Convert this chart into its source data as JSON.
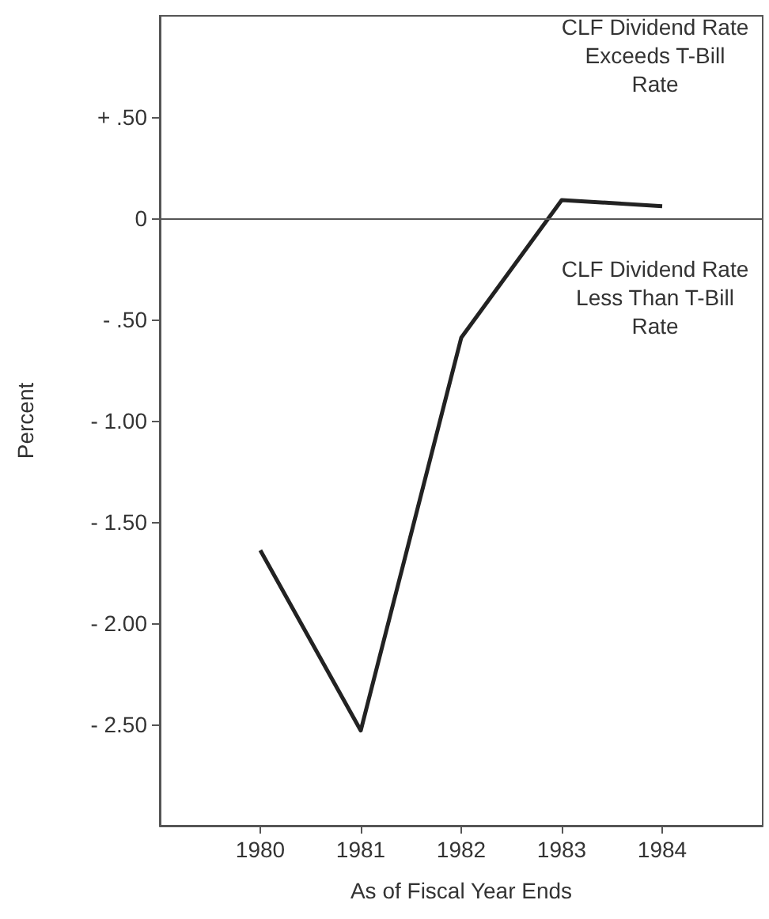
{
  "chart_data": {
    "type": "line",
    "xlabel": "As of Fiscal Year Ends",
    "ylabel": "Percent",
    "x": [
      1980,
      1981,
      1982,
      1983,
      1984
    ],
    "series": [
      {
        "color": "#222222",
        "values": [
          -1.64,
          -2.53,
          -0.59,
          0.09,
          0.06
        ]
      }
    ],
    "xlim": [
      1979,
      1985
    ],
    "xticks": [
      1980,
      1981,
      1982,
      1983,
      1984
    ],
    "ylim": [
      -3,
      1
    ],
    "yticks": [
      {
        "value": 0.5,
        "label": "+ .50"
      },
      {
        "value": 0,
        "label": "0"
      },
      {
        "value": -0.5,
        "label": "- .50"
      },
      {
        "value": -1,
        "label": "- 1.00"
      },
      {
        "value": -1.5,
        "label": "- 1.50"
      },
      {
        "value": -2,
        "label": "- 2.00"
      },
      {
        "value": -2.5,
        "label": "- 2.50"
      }
    ],
    "ref_lines": [
      {
        "axis": "y",
        "value": 0,
        "color": "#555555"
      }
    ],
    "annotations": [
      "CLF Dividend Rate Exceeds T-Bill Rate",
      "CLF Dividend Rate Less Than T-Bill Rate"
    ],
    "marker": "none",
    "line_style": "solid"
  }
}
